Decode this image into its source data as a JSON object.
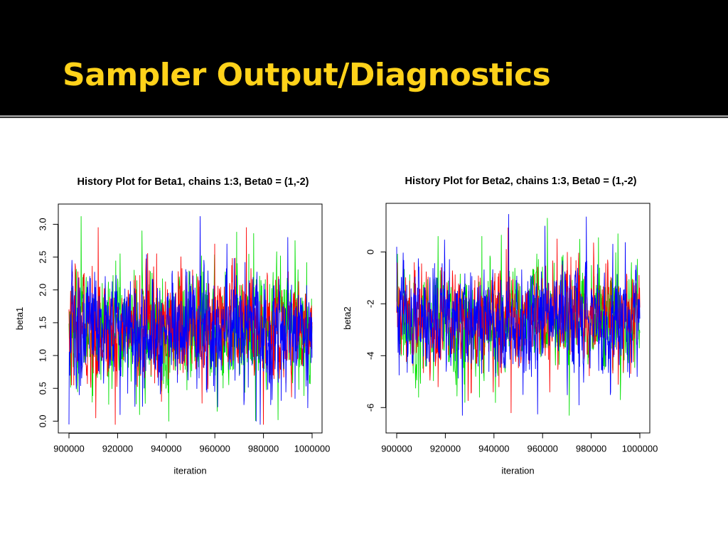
{
  "slide": {
    "title": "Sampler Output/Diagnostics",
    "title_color": "#FFD21A",
    "background": "#000000"
  },
  "chart_data": [
    {
      "type": "line",
      "title": "History Plot for Beta1, chains 1:3, Beta0 = (1,-2)",
      "xlabel": "iteration",
      "ylabel": "beta1",
      "xlim": [
        900000,
        1000000
      ],
      "ylim": [
        -0.05,
        3.2
      ],
      "xticks": [
        900000,
        920000,
        940000,
        960000,
        980000,
        1000000
      ],
      "yticks": [
        0.0,
        0.5,
        1.0,
        1.5,
        2.0,
        2.5,
        3.0
      ],
      "ytick_labels": [
        "0.0",
        "0.5",
        "1.0",
        "1.5",
        "2.0",
        "2.5",
        "3.0"
      ],
      "grid": false,
      "legend": "none",
      "series": [
        {
          "color": "#00E000",
          "mean": 1.4,
          "sd": 0.42,
          "min": -0.05,
          "max": 3.13,
          "extremes": [
            [
              905000,
              3.12
            ],
            [
              921000,
              2.55
            ],
            [
              930000,
              2.9
            ],
            [
              969000,
              2.88
            ],
            [
              976000,
              2.86
            ],
            [
              993000,
              2.75
            ],
            [
              929000,
              0.1
            ],
            [
              941000,
              0.0
            ],
            [
              961000,
              0.15
            ],
            [
              986000,
              0.02
            ]
          ]
        },
        {
          "color": "#FF0000",
          "mean": 1.4,
          "sd": 0.4,
          "min": -0.05,
          "max": 3.13,
          "extremes": [
            [
              912000,
              2.95
            ],
            [
              936000,
              2.55
            ],
            [
              960000,
              2.7
            ],
            [
              973000,
              2.95
            ],
            [
              902000,
              0.55
            ],
            [
              911000,
              0.05
            ],
            [
              919000,
              -0.05
            ],
            [
              980000,
              -0.05
            ],
            [
              938000,
              0.3
            ]
          ]
        },
        {
          "color": "#0000FF",
          "mean": 1.4,
          "sd": 0.45,
          "min": -0.05,
          "max": 3.13,
          "extremes": [
            [
              954000,
              3.12
            ],
            [
              965000,
              2.7
            ],
            [
              990000,
              2.8
            ],
            [
              900000,
              -0.05
            ],
            [
              921000,
              0.1
            ],
            [
              972000,
              0.25
            ],
            [
              977000,
              0.0
            ],
            [
              983000,
              0.25
            ],
            [
              960000,
              0.45
            ]
          ]
        }
      ]
    },
    {
      "type": "line",
      "title": "History Plot for Beta2, chains 1:3, Beta0 = (1,-2)",
      "xlabel": "iteration",
      "ylabel": "beta2",
      "xlim": [
        900000,
        1000000
      ],
      "ylim": [
        -6.65,
        1.6
      ],
      "xticks": [
        900000,
        920000,
        940000,
        960000,
        980000,
        1000000
      ],
      "yticks": [
        0,
        -2,
        -4,
        -6
      ],
      "ytick_labels": [
        "0",
        "-2",
        "-4",
        "-6"
      ],
      "grid": false,
      "legend": "none",
      "series": [
        {
          "color": "#00E000",
          "mean": -2.6,
          "sd": 0.95,
          "min": -6.5,
          "max": 1.5,
          "extremes": [
            [
              917000,
              0.6
            ],
            [
              935000,
              0.6
            ],
            [
              943000,
              0.65
            ],
            [
              962000,
              1.3
            ],
            [
              983000,
              0.55
            ],
            [
              991000,
              0.7
            ],
            [
              909000,
              -5.6
            ],
            [
              928000,
              -5.8
            ],
            [
              934000,
              -5.6
            ],
            [
              971000,
              -6.3
            ],
            [
              992000,
              -5.7
            ]
          ]
        },
        {
          "color": "#FF0000",
          "mean": -2.6,
          "sd": 0.9,
          "min": -6.5,
          "max": 1.5,
          "extremes": [
            [
              945000,
              0.1
            ],
            [
              966000,
              0.5
            ],
            [
              981000,
              0.35
            ],
            [
              917000,
              -5.2
            ],
            [
              942000,
              -5.2
            ],
            [
              947000,
              -6.2
            ],
            [
              963000,
              -5.4
            ]
          ]
        },
        {
          "color": "#0000FF",
          "mean": -2.6,
          "sd": 1.0,
          "min": -6.5,
          "max": 1.5,
          "extremes": [
            [
              946000,
              1.45
            ],
            [
              961000,
              1.0
            ],
            [
              978000,
              1.35
            ],
            [
              900000,
              0.2
            ],
            [
              927000,
              -6.3
            ],
            [
              952000,
              -5.5
            ],
            [
              958000,
              -6.25
            ],
            [
              975000,
              -5.9
            ],
            [
              988000,
              -5.4
            ]
          ]
        }
      ]
    }
  ]
}
